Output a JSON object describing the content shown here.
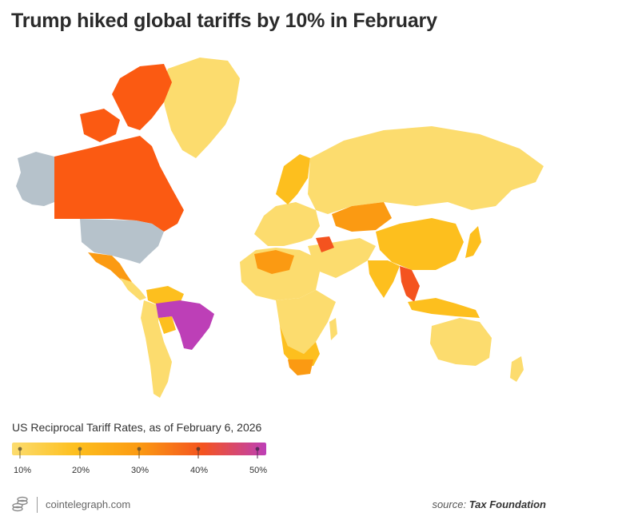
{
  "title": "Trump hiked global tariffs by 10% in February",
  "legend": {
    "title": "US Reciprocal Tariff Rates, as of February 6, 2026",
    "ticks": [
      "10%",
      "20%",
      "30%",
      "40%",
      "50%"
    ],
    "colors": [
      "#fcdc6e",
      "#fdbf1e",
      "#fb9a12",
      "#f4531f",
      "#bd3fb7"
    ]
  },
  "regions": {
    "alaska": "#b6c2cb",
    "usa": "#b6c2cb",
    "canada": "#fb5a12",
    "greenland": "#fcdc6e",
    "mexico": "#fb9a12",
    "central_america": "#fcdc6e",
    "venezuela": "#fdbf1e",
    "brazil": "#bd3fb7",
    "south_america": "#fcdc6e",
    "bolivia": "#fdbf1e",
    "europe": "#fcdc6e",
    "scandinavia": "#fdbf1e",
    "russia": "#fcdc6e",
    "kazakhstan": "#fb9a12",
    "china": "#fdbf1e",
    "india": "#fdbf1e",
    "southeast_asia": "#f4531f",
    "indonesia": "#fdbf1e",
    "japan": "#fdbf1e",
    "middle_east": "#fcdc6e",
    "syria_iraq": "#f4531f",
    "north_africa": "#fcdc6e",
    "libya": "#fb9a12",
    "africa": "#fcdc6e",
    "southern_africa": "#fdbf1e",
    "south_africa": "#fb9a12",
    "australia": "#fcdc6e",
    "new_zealand": "#fcdc6e"
  },
  "footer": {
    "site": "cointelegraph.com",
    "source_prefix": "source:",
    "source_name": "Tax Foundation"
  }
}
